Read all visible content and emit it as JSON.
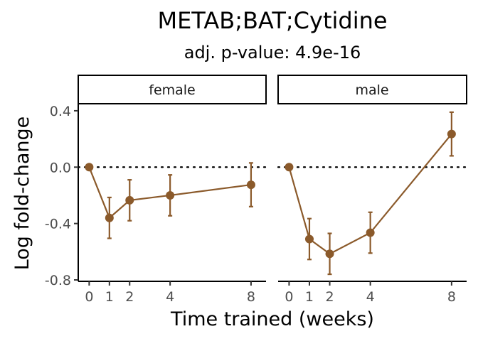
{
  "chart_data": {
    "type": "line",
    "title": "METAB;BAT;Cytidine",
    "subtitle": "adj. p-value: 4.9e-16",
    "xlabel": "Time trained (weeks)",
    "ylabel": "Log fold-change",
    "x": [
      0,
      1,
      2,
      4,
      8
    ],
    "x_ticks": [
      "0",
      "1",
      "2",
      "4",
      "8"
    ],
    "xlim": [
      -0.4,
      8.6
    ],
    "y_ticks": [
      "0.4",
      "0.0",
      "-0.4",
      "-0.8"
    ],
    "y_tick_values": [
      0.4,
      0.0,
      -0.4,
      -0.8
    ],
    "ylim": [
      -0.81,
      0.45
    ],
    "reference_line": 0.0,
    "color": "#8B5A2B",
    "panels": [
      {
        "facet": "female",
        "values": [
          0.0,
          -0.36,
          -0.235,
          -0.2,
          -0.125
        ],
        "lower": [
          0.0,
          -0.505,
          -0.38,
          -0.345,
          -0.28
        ],
        "upper": [
          0.0,
          -0.215,
          -0.09,
          -0.055,
          0.03
        ]
      },
      {
        "facet": "male",
        "values": [
          0.0,
          -0.51,
          -0.615,
          -0.465,
          0.235
        ],
        "lower": [
          0.0,
          -0.655,
          -0.76,
          -0.61,
          0.08
        ],
        "upper": [
          0.0,
          -0.365,
          -0.47,
          -0.32,
          0.39
        ]
      }
    ]
  }
}
